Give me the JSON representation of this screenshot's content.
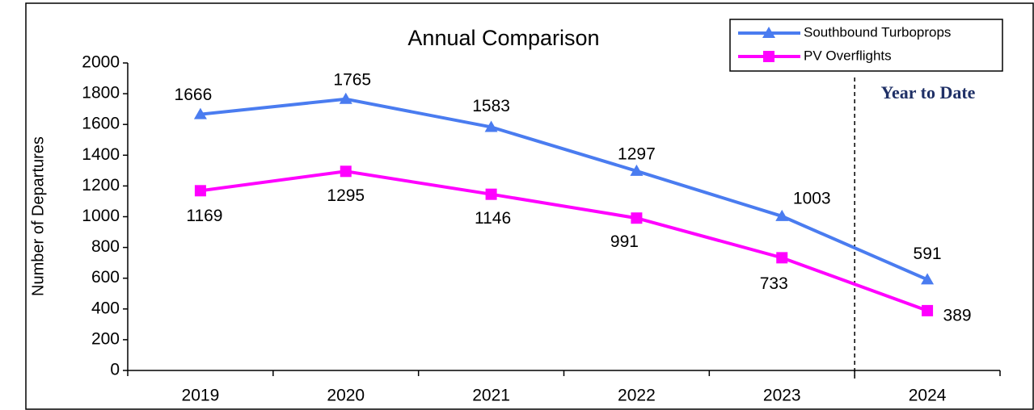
{
  "chart_data": {
    "type": "line",
    "title": "Annual Comparison",
    "y_label": "Number of Departures",
    "categories": [
      "2019",
      "2020",
      "2021",
      "2022",
      "2023",
      "2024"
    ],
    "series": [
      {
        "name": "Southbound Turboprops",
        "color": "#4a7cf0",
        "marker": "triangle",
        "values": [
          1666,
          1765,
          1583,
          1297,
          1003,
          591
        ]
      },
      {
        "name": "PV Overflights",
        "color": "#ff00ff",
        "marker": "square",
        "values": [
          1169,
          1295,
          1146,
          991,
          733,
          389
        ]
      }
    ],
    "ylim": [
      0,
      2000
    ],
    "yticks": [
      0,
      200,
      400,
      600,
      800,
      1000,
      1200,
      1400,
      1600,
      1800,
      2000
    ],
    "grid": false,
    "legend": "upper right",
    "annotation": "Year to Date"
  }
}
